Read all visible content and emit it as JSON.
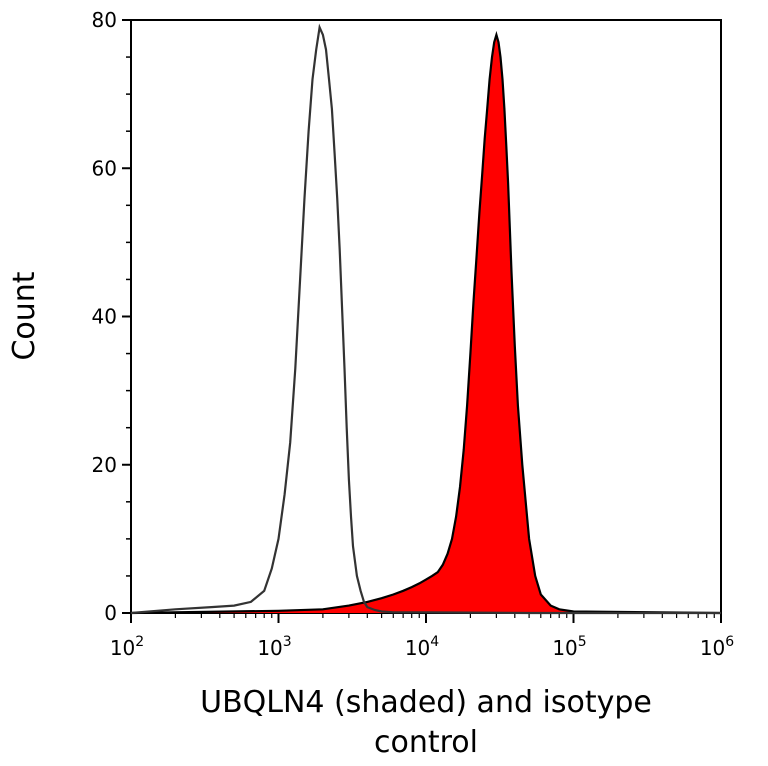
{
  "chart_data": {
    "type": "area",
    "title": "",
    "xlabel": "UBQLN4 (shaded) and isotype control",
    "ylabel": "Count",
    "x_scale": "log",
    "xlim": [
      100,
      1000000
    ],
    "ylim": [
      0,
      80
    ],
    "grid": false,
    "x_ticks": [
      {
        "value": 100,
        "base": "10",
        "exp": "2"
      },
      {
        "value": 1000,
        "base": "10",
        "exp": "3"
      },
      {
        "value": 10000,
        "base": "10",
        "exp": "4"
      },
      {
        "value": 100000,
        "base": "10",
        "exp": "5"
      },
      {
        "value": 1000000,
        "base": "10",
        "exp": "6"
      }
    ],
    "y_ticks": [
      0,
      20,
      40,
      60,
      80
    ],
    "series": [
      {
        "role": "isotype control",
        "style": "outline",
        "color": "#333333",
        "x": [
          100,
          200,
          350,
          500,
          650,
          800,
          900,
          1000,
          1100,
          1200,
          1300,
          1400,
          1500,
          1600,
          1700,
          1800,
          1900,
          2000,
          2100,
          2200,
          2300,
          2400,
          2500,
          2600,
          2700,
          2800,
          2900,
          3000,
          3100,
          3200,
          3400,
          3600,
          3800,
          4000,
          4500,
          5000,
          6000,
          8000,
          10000,
          20000,
          50000,
          100000,
          1000000
        ],
        "values": [
          0,
          0.5,
          0.8,
          1,
          1.5,
          3,
          6,
          10,
          16,
          23,
          33,
          45,
          56,
          65,
          72,
          76,
          79,
          78,
          76,
          72,
          68,
          62,
          56,
          49,
          41,
          33,
          25,
          18,
          13,
          9,
          5,
          3,
          1.5,
          0.8,
          0.4,
          0.2,
          0.1,
          0.1,
          0.1,
          0.05,
          0,
          0,
          0
        ]
      },
      {
        "name": "UBQLN4",
        "role": "shaded",
        "style": "filled",
        "color": "#ff0000",
        "x": [
          100,
          1000,
          2000,
          3000,
          4000,
          5000,
          6000,
          7000,
          8000,
          9000,
          10000,
          11000,
          12000,
          13000,
          14000,
          15000,
          16000,
          17000,
          18000,
          19000,
          20000,
          21000,
          22000,
          23000,
          24000,
          25000,
          26000,
          27000,
          28000,
          29000,
          30000,
          31000,
          32000,
          33000,
          34000,
          35000,
          36000,
          37000,
          38000,
          40000,
          42000,
          45000,
          50000,
          55000,
          60000,
          70000,
          80000,
          100000,
          1000000
        ],
        "values": [
          0,
          0.3,
          0.5,
          1,
          1.5,
          2,
          2.5,
          3,
          3.5,
          4,
          4.5,
          5,
          5.5,
          6.5,
          8,
          10,
          13,
          17,
          22,
          28,
          35,
          42,
          48,
          54,
          59,
          64,
          68,
          72,
          75,
          77,
          78,
          77,
          75,
          72,
          68,
          63,
          58,
          52,
          46,
          36,
          28,
          20,
          10,
          5,
          2.5,
          1,
          0.5,
          0.2,
          0
        ]
      }
    ]
  }
}
